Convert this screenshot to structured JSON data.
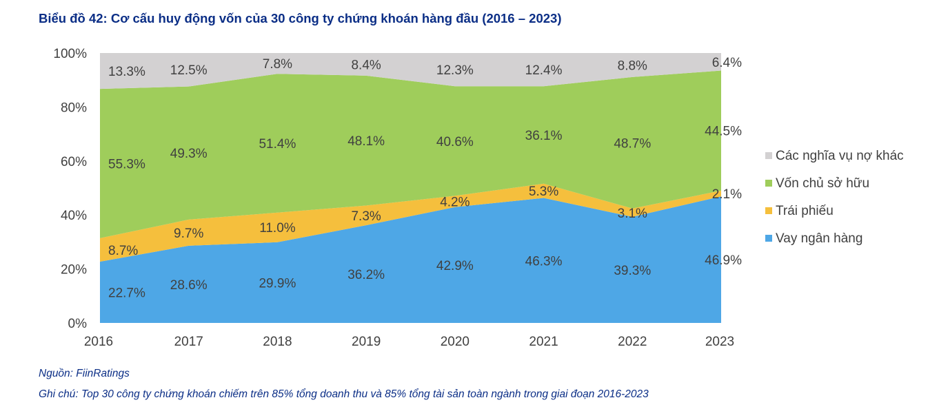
{
  "title": "Biểu đồ 42: Cơ cấu huy động vốn của 30 công ty chứng khoán hàng đầu (2016 – 2023)",
  "footer": {
    "source": "Nguồn: FiinRatings",
    "note": "Ghi chú: Top 30 công ty chứng khoán chiếm trên 85% tổng doanh thu và 85% tổng tài sản toàn ngành trong giai đoạn 2016-2023"
  },
  "chart_data": {
    "type": "area",
    "stacked": true,
    "categories": [
      "2016",
      "2017",
      "2018",
      "2019",
      "2020",
      "2021",
      "2022",
      "2023"
    ],
    "series": [
      {
        "name": "Vay ngân hàng",
        "color": "#4ea7e6",
        "values": [
          22.7,
          28.6,
          29.9,
          36.2,
          42.9,
          46.3,
          39.3,
          46.9
        ],
        "labels": [
          "22.7%",
          "28.6%",
          "29.9%",
          "36.2%",
          "42.9%",
          "46.3%",
          "39.3%",
          "46.9%"
        ]
      },
      {
        "name": "Trái phiếu",
        "color": "#f5bf3d",
        "values": [
          8.7,
          9.7,
          11.0,
          7.3,
          4.2,
          5.3,
          3.1,
          2.1
        ],
        "labels": [
          "8.7%",
          "9.7%",
          "11.0%",
          "7.3%",
          "4.2%",
          "5.3%",
          "3.1%",
          "2.1%"
        ]
      },
      {
        "name": "Vốn chủ sở hữu",
        "color": "#9fcd5b",
        "values": [
          55.3,
          49.3,
          51.4,
          48.1,
          40.6,
          36.1,
          48.7,
          44.5
        ],
        "labels": [
          "55.3%",
          "49.3%",
          "51.4%",
          "48.1%",
          "40.6%",
          "36.1%",
          "48.7%",
          "44.5%"
        ]
      },
      {
        "name": "Các nghĩa vụ nợ khác",
        "color": "#d3d1d2",
        "values": [
          13.3,
          12.5,
          7.8,
          8.4,
          12.3,
          12.4,
          8.8,
          6.4
        ],
        "labels": [
          "13.3%",
          "12.5%",
          "7.8%",
          "8.4%",
          "12.3%",
          "12.4%",
          "8.8%",
          "6.4%"
        ]
      }
    ],
    "legend_order": [
      "Các nghĩa vụ nợ khác",
      "Vốn chủ sở hữu",
      "Trái phiếu",
      "Vay ngân hàng"
    ],
    "legend_position": "right",
    "y_ticks": [
      "0%",
      "20%",
      "40%",
      "60%",
      "80%",
      "100%"
    ],
    "ylim": [
      0,
      100
    ],
    "xlabel": "",
    "ylabel": "",
    "grid": false
  }
}
